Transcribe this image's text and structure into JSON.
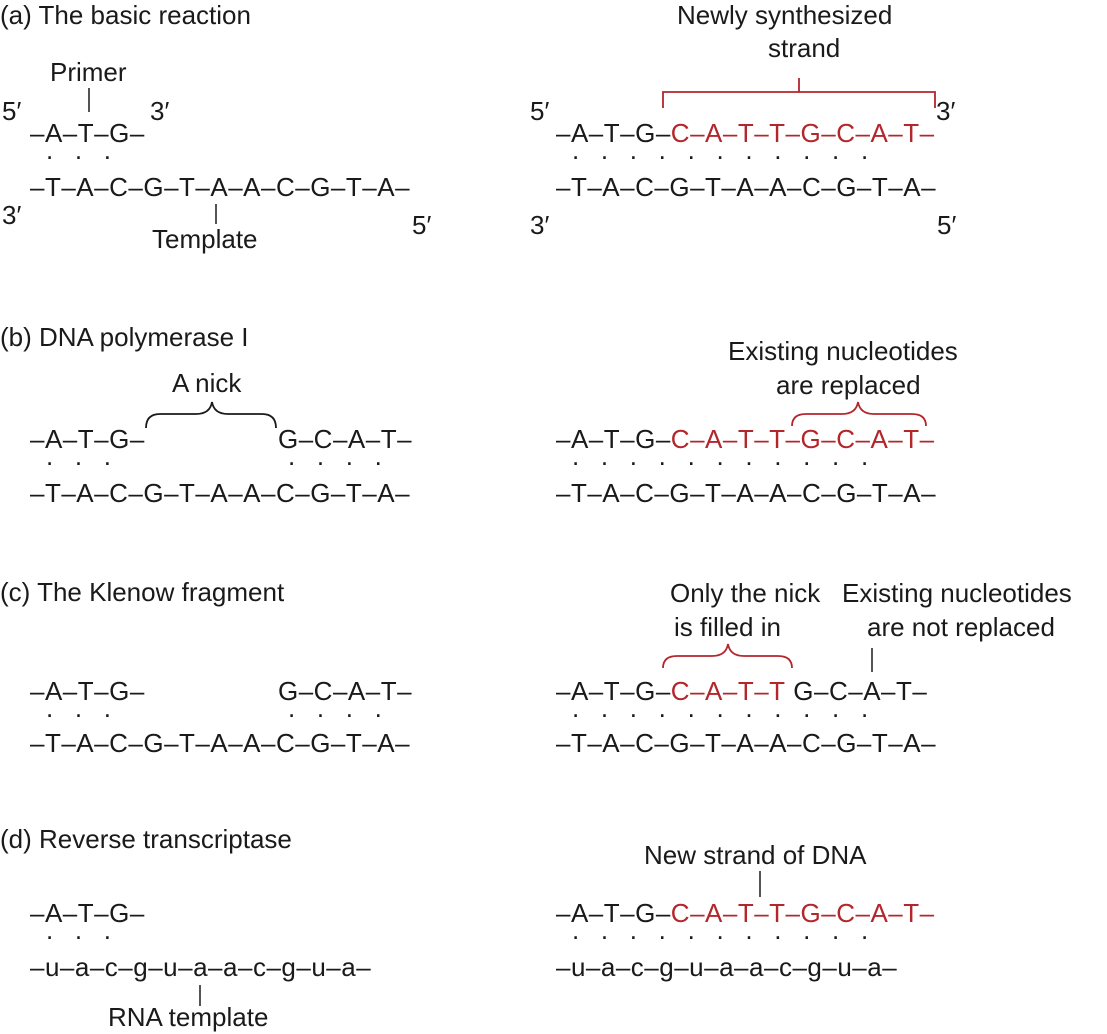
{
  "colors": {
    "text": "#1a1a1a",
    "accent": "#b3262b"
  },
  "panel_a": {
    "title": "(a) The basic reaction",
    "left": {
      "primer_label": "Primer",
      "prime5_top": "5′",
      "prime3_top": "3′",
      "top_strand": "–A–T–G–",
      "dots": ".   .   .",
      "bottom_strand": "–T–A–C–G–T–A–A–C–G–T–A–",
      "prime3_bottom": "3′",
      "prime5_bottom": "5′",
      "template_label": "Template"
    },
    "right": {
      "new_label_line1": "Newly synthesized",
      "new_label_line2": "strand",
      "prime5_top": "5′",
      "prime3_top": "3′",
      "top_black": "–A–T–G–",
      "top_red": "C–A–T–T–G–C–A–T–",
      "dots": ".   .   .   .   .   .   .   .   .   .   .",
      "bottom_strand": "–T–A–C–G–T–A–A–C–G–T–A–",
      "prime3_bottom": "3′",
      "prime5_bottom": "5′"
    }
  },
  "panel_b": {
    "title": "(b) DNA polymerase I",
    "left": {
      "nick_label": "A nick",
      "top_left": "–A–T–G–",
      "top_right": "G–C–A–T–",
      "dots_left": ".   .   .",
      "dots_right": ".   .   .   .",
      "bottom_strand": "–T–A–C–G–T–A–A–C–G–T–A–"
    },
    "right": {
      "label_line1": "Existing nucleotides",
      "label_line2": "are replaced",
      "top_black": "–A–T–G–",
      "top_red": "C–A–T–T–G–C–A–T–",
      "dots": ".   .   .   .   .   .   .   .   .   .   .",
      "bottom_strand": "–T–A–C–G–T–A–A–C–G–T–A–"
    }
  },
  "panel_c": {
    "title": "(c) The Klenow fragment",
    "left": {
      "top_left": "–A–T–G–",
      "top_right": "G–C–A–T–",
      "dots_left": ".   .   .",
      "dots_right": ".   .   .   .",
      "bottom_strand": "–T–A–C–G–T–A–A–C–G–T–A–"
    },
    "right": {
      "fill_label_line1": "Only the nick",
      "fill_label_line2": "is filled in",
      "keep_label_line1": "Existing nucleotides",
      "keep_label_line2": "are not replaced",
      "top_black": "–A–T–G–",
      "top_red": "C–A–T–T",
      "top_tail": "G–C–A–T–",
      "dots": ".   .   .   .   .   .   .   .   .   .   .",
      "bottom_strand": "–T–A–C–G–T–A–A–C–G–T–A–"
    }
  },
  "panel_d": {
    "title": "(d) Reverse transcriptase",
    "left": {
      "top_strand": "–A–T–G–",
      "dots": ".   .   .",
      "bottom_strand": "–u–a–c–g–u–a–a–c–g–u–a–",
      "template_label": "RNA template"
    },
    "right": {
      "new_label": "New strand of DNA",
      "top_black": "–A–T–G–",
      "top_red": "C–A–T–T–G–C–A–T–",
      "dots": ".   .   .   .   .   .   .   .   .   .   .",
      "bottom_strand": "–u–a–c–g–u–a–a–c–g–u–a–"
    }
  }
}
